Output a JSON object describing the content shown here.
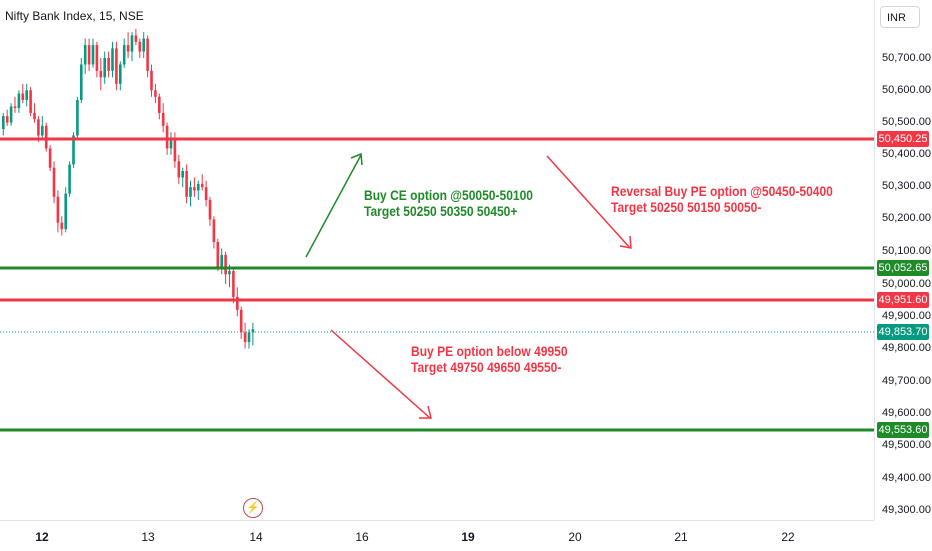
{
  "chart": {
    "title": "Nifty Bank Index, 15, NSE",
    "currency": "INR",
    "colors": {
      "up": "#089981",
      "down": "#f23645",
      "support_line": "#1f8a28",
      "resistance_line": "#f23645",
      "current_price": "#089981"
    }
  },
  "price_axis": {
    "ticks": [
      "50,700.00",
      "50,600.00",
      "50,500.00",
      "50,400.00",
      "50,300.00",
      "50,200.00",
      "50,100.00",
      "50,000.00",
      "49,900.00",
      "49,800.00",
      "49,700.00",
      "49,600.00",
      "49,500.00",
      "49,400.00",
      "49,300.00"
    ],
    "badges": {
      "resistance_top": "50,450.25",
      "support_mid": "50,052.65",
      "resistance_low": "49,951.60",
      "current_price": "49,853.70",
      "support_low": "49,553.60"
    }
  },
  "time_axis": {
    "labels": [
      "12",
      "13",
      "14",
      "16",
      "19",
      "20",
      "21",
      "22"
    ]
  },
  "annotations": {
    "buy_ce": {
      "line1": "Buy CE option @50050-50100",
      "line2": "Target 50250 50350 50450+"
    },
    "reversal_pe": {
      "line1": "Reversal Buy PE option @50450-50400",
      "line2": "Target 50250 50150 50050-"
    },
    "buy_pe": {
      "line1": "Buy PE option below 49950",
      "line2": "Target 49750 49650 49550-"
    }
  },
  "icons": {
    "flash": "lightning-icon"
  },
  "chart_data": {
    "type": "candlestick",
    "title": "Nifty Bank Index, 15, NSE",
    "horizontal_levels": [
      50450.25,
      50052.65,
      49951.6,
      49553.6
    ],
    "last_price": 49853.7,
    "ylim": [
      49270,
      50790
    ],
    "candles": [
      [
        50480,
        50530,
        50460,
        50520
      ],
      [
        50520,
        50540,
        50490,
        50500
      ],
      [
        50500,
        50560,
        50490,
        50550
      ],
      [
        50550,
        50580,
        50530,
        50545
      ],
      [
        50545,
        50600,
        50530,
        50590
      ],
      [
        50590,
        50620,
        50560,
        50570
      ],
      [
        50570,
        50620,
        50550,
        50600
      ],
      [
        50600,
        50610,
        50520,
        50530
      ],
      [
        50530,
        50560,
        50500,
        50510
      ],
      [
        50510,
        50520,
        50440,
        50460
      ],
      [
        50460,
        50520,
        50450,
        50490
      ],
      [
        50490,
        50500,
        50410,
        50420
      ],
      [
        50420,
        50430,
        50350,
        50360
      ],
      [
        50360,
        50380,
        50250,
        50270
      ],
      [
        50270,
        50290,
        50160,
        50190
      ],
      [
        50190,
        50210,
        50150,
        50170
      ],
      [
        50170,
        50300,
        50160,
        50280
      ],
      [
        50280,
        50380,
        50270,
        50370
      ],
      [
        50370,
        50470,
        50360,
        50460
      ],
      [
        50460,
        50580,
        50450,
        50570
      ],
      [
        50570,
        50700,
        50560,
        50680
      ],
      [
        50680,
        50760,
        50650,
        50740
      ],
      [
        50740,
        50760,
        50660,
        50680
      ],
      [
        50680,
        50760,
        50670,
        50740
      ],
      [
        50740,
        50750,
        50640,
        50660
      ],
      [
        50660,
        50700,
        50600,
        50640
      ],
      [
        50640,
        50720,
        50620,
        50700
      ],
      [
        50700,
        50720,
        50640,
        50660
      ],
      [
        50660,
        50750,
        50640,
        50730
      ],
      [
        50730,
        50750,
        50600,
        50620
      ],
      [
        50620,
        50690,
        50600,
        50680
      ],
      [
        50680,
        50760,
        50670,
        50740
      ],
      [
        50740,
        50780,
        50700,
        50720
      ],
      [
        50720,
        50780,
        50690,
        50770
      ],
      [
        50770,
        50790,
        50740,
        50750
      ],
      [
        50750,
        50760,
        50700,
        50720
      ],
      [
        50720,
        50780,
        50700,
        50760
      ],
      [
        50760,
        50770,
        50640,
        50660
      ],
      [
        50660,
        50680,
        50580,
        50600
      ],
      [
        50600,
        50620,
        50560,
        50580
      ],
      [
        50580,
        50590,
        50510,
        50530
      ],
      [
        50530,
        50560,
        50470,
        50490
      ],
      [
        50490,
        50500,
        50400,
        50420
      ],
      [
        50420,
        50470,
        50400,
        50450
      ],
      [
        50450,
        50470,
        50360,
        50380
      ],
      [
        50380,
        50400,
        50310,
        50330
      ],
      [
        50330,
        50360,
        50300,
        50350
      ],
      [
        50350,
        50370,
        50250,
        50270
      ],
      [
        50270,
        50320,
        50240,
        50300
      ],
      [
        50300,
        50330,
        50270,
        50290
      ],
      [
        50290,
        50320,
        50260,
        50310
      ],
      [
        50310,
        50340,
        50290,
        50300
      ],
      [
        50300,
        50320,
        50240,
        50260
      ],
      [
        50260,
        50270,
        50180,
        50200
      ],
      [
        50200,
        50210,
        50110,
        50130
      ],
      [
        50130,
        50140,
        50040,
        50050
      ],
      [
        50050,
        50110,
        50030,
        50090
      ],
      [
        50090,
        50100,
        50000,
        50030
      ],
      [
        50030,
        50060,
        49990,
        50040
      ],
      [
        50040,
        50050,
        49940,
        49960
      ],
      [
        49960,
        49990,
        49900,
        49920
      ],
      [
        49920,
        49930,
        49830,
        49850
      ],
      [
        49850,
        49880,
        49800,
        49820
      ],
      [
        49820,
        49860,
        49800,
        49850
      ],
      [
        49850,
        49880,
        49810,
        49860
      ]
    ]
  }
}
